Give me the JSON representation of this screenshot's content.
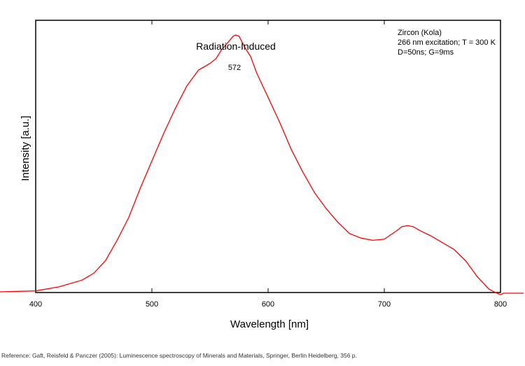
{
  "chart_data": {
    "type": "line",
    "title": "Radiation-Induced",
    "xlabel": "Wavelength [nm]",
    "ylabel": "Intensity [a.u.]",
    "xlim": [
      400,
      800
    ],
    "x_ticks": [
      "400",
      "500",
      "600",
      "700",
      "800"
    ],
    "y_tick_labels": false,
    "grid": false,
    "series_color": "#ff0000",
    "peak_label": "572",
    "info_box": [
      "Zircon (Kola)",
      "266 nm excitation; T = 300 K",
      "D=50ns; G=9ms"
    ],
    "series": [
      {
        "x": [
          400,
          420,
          440,
          450,
          460,
          470,
          480,
          490,
          500,
          510,
          520,
          530,
          540,
          545,
          550,
          555,
          560,
          565,
          570,
          572,
          575,
          580,
          585,
          590,
          600,
          610,
          620,
          630,
          640,
          650,
          660,
          670,
          680,
          690,
          700,
          710,
          715,
          720,
          725,
          730,
          740,
          750,
          760,
          770,
          780,
          790,
          795,
          800
        ],
        "y": [
          0.7,
          2.5,
          5.5,
          8.5,
          14,
          23,
          33,
          46,
          58,
          70,
          81,
          91,
          98,
          99.5,
          101,
          103,
          107,
          110,
          113,
          113.5,
          113,
          108,
          104,
          97,
          86,
          75,
          63,
          53,
          44,
          37,
          31,
          26,
          24,
          23,
          23.5,
          27,
          29,
          29.5,
          29,
          27.5,
          25,
          22,
          19,
          14,
          7,
          1.5,
          0.2,
          -1
        ]
      }
    ]
  },
  "footer": {
    "reference": "Reference: Gaft, Reisfeld & Panczer (2005): Luminescence spectroscopy of Minerals and Materials, Springer, Berlin Heidelberg, 356 p."
  }
}
